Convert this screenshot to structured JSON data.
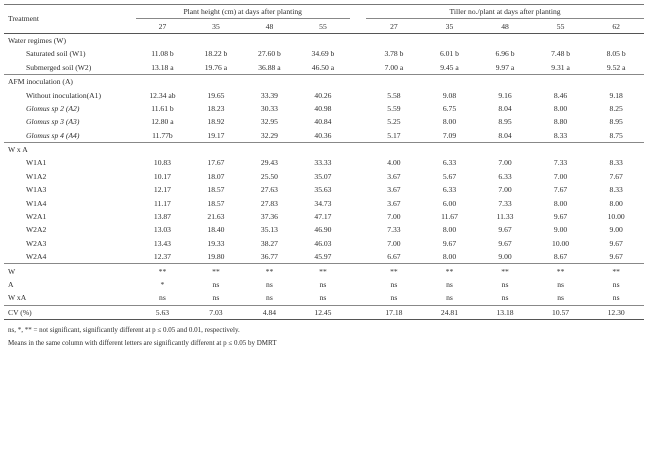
{
  "table": {
    "header": {
      "treatment": "Treatment",
      "plant_height": "Plant height (cm) at days after planting",
      "tiller": "Tiller no./plant at days after planting",
      "plant_height_days": [
        "27",
        "35",
        "48",
        "55"
      ],
      "tiller_days": [
        "27",
        "35",
        "48",
        "55",
        "62"
      ]
    },
    "rows": [
      {
        "section": "Water regimes (W)"
      },
      {
        "label": "Saturated soil (W1)",
        "values": [
          "11.08 b",
          "18.22 b",
          "27.60 b",
          "34.69 b",
          "3.78 b",
          "6.01 b",
          "6.96 b",
          "7.48 b",
          "8.05 b"
        ]
      },
      {
        "label": "Submerged soil (W2)",
        "values": [
          "13.18 a",
          "19.76 a",
          "36.88 a",
          "46.50 a",
          "7.00 a",
          "9.45 a",
          "9.97 a",
          "9.31 a",
          "9.52 a"
        ]
      },
      {
        "section": "AFM inoculation (A)"
      },
      {
        "label": "Without inoculation(A1)",
        "values": [
          "12.34 ab",
          "19.65",
          "33.39",
          "40.26",
          "5.58",
          "9.08",
          "9.16",
          "8.46",
          "9.18"
        ]
      },
      {
        "label": "Glomus sp 2 (A2)",
        "values": [
          "11.61 b",
          "18.23",
          "30.33",
          "40.98",
          "5.59",
          "6.75",
          "8.04",
          "8.00",
          "8.25"
        ]
      },
      {
        "label": "Glomus sp 3 (A3)",
        "values": [
          "12.80 a",
          "18.92",
          "32.95",
          "40.84",
          "5.25",
          "8.00",
          "8.95",
          "8.80",
          "8.95"
        ]
      },
      {
        "label": "Glomus sp 4 (A4)",
        "values": [
          "11.77b",
          "19.17",
          "32.29",
          "40.36",
          "5.17",
          "7.09",
          "8.04",
          "8.33",
          "8.75"
        ]
      },
      {
        "section": "W x A"
      },
      {
        "label": "W1A1",
        "values": [
          "10.83",
          "17.67",
          "29.43",
          "33.33",
          "4.00",
          "6.33",
          "7.00",
          "7.33",
          "8.33"
        ]
      },
      {
        "label": "W1A2",
        "values": [
          "10.17",
          "18.07",
          "25.50",
          "35.07",
          "3.67",
          "5.67",
          "6.33",
          "7.00",
          "7.67"
        ]
      },
      {
        "label": "W1A3",
        "values": [
          "12.17",
          "18.57",
          "27.63",
          "35.63",
          "3.67",
          "6.33",
          "7.00",
          "7.67",
          "8.33"
        ]
      },
      {
        "label": "W1A4",
        "values": [
          "11.17",
          "18.57",
          "27.83",
          "34.73",
          "3.67",
          "6.00",
          "7.33",
          "8.00",
          "8.00"
        ]
      },
      {
        "label": "W2A1",
        "values": [
          "13.87",
          "21.63",
          "37.36",
          "47.17",
          "7.00",
          "11.67",
          "11.33",
          "9.67",
          "10.00"
        ]
      },
      {
        "label": "W2A2",
        "values": [
          "13.03",
          "18.40",
          "35.13",
          "46.90",
          "7.33",
          "8.00",
          "9.67",
          "9.00",
          "9.00"
        ]
      },
      {
        "label": "W2A3",
        "values": [
          "13.43",
          "19.33",
          "38.27",
          "46.03",
          "7.00",
          "9.67",
          "9.67",
          "10.00",
          "9.67"
        ]
      },
      {
        "label": "W2A4",
        "values": [
          "12.37",
          "19.80",
          "36.77",
          "45.97",
          "6.67",
          "8.00",
          "9.00",
          "8.67",
          "9.67"
        ]
      },
      {
        "label": "W",
        "values": [
          "**",
          "**",
          "**",
          "**",
          "**",
          "**",
          "**",
          "**",
          "**"
        ]
      },
      {
        "label": "A",
        "values": [
          "*",
          "ns",
          "ns",
          "ns",
          "ns",
          "ns",
          "ns",
          "ns",
          "ns"
        ]
      },
      {
        "label": "W xA",
        "values": [
          "ns",
          "ns",
          "ns",
          "ns",
          "ns",
          "ns",
          "ns",
          "ns",
          "ns"
        ]
      },
      {
        "label": "CV (%)",
        "values": [
          "5.63",
          "7.03",
          "4.84",
          "12.45",
          "17.18",
          "24.81",
          "13.18",
          "10.57",
          "12.30"
        ]
      }
    ],
    "notes": [
      "ns, *, ** = not significant, significantly different at p ≤ 0.05 and 0.01, respectively.",
      "Means in the same column with different letters are significantly different at p ≤ 0.05 by DMRT"
    ]
  }
}
